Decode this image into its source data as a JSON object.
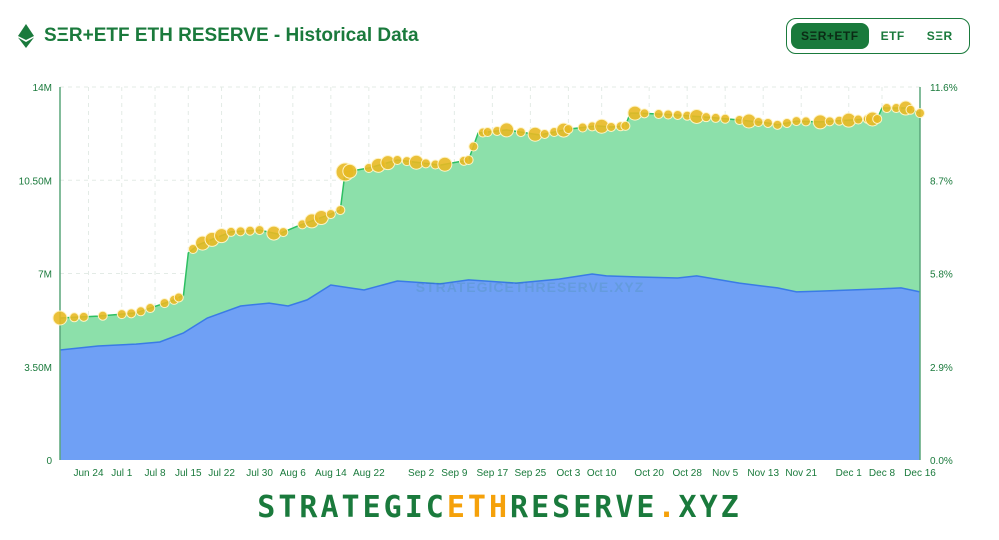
{
  "header": {
    "title": "SΞR+ETF ETH RESERVE - Historical Data",
    "logo_icon": "ethereum-icon"
  },
  "toggle": {
    "options": [
      "SΞR+ETF",
      "ETF",
      "SΞR"
    ],
    "active": 0
  },
  "footer": {
    "part1": "STRATEGIC",
    "part2": "ETH",
    "part3": "RESERVE",
    "part4": ".",
    "part5": "XYZ"
  },
  "colors": {
    "brand": "#1a7a3c",
    "total_fill": "#8ce0aa",
    "total_line": "#2dbf62",
    "ser_fill": "#6fa0f5",
    "ser_line": "#3a7be6",
    "bubble": "#e8b923",
    "accent": "#f5a10a"
  },
  "chart_data": {
    "type": "area",
    "watermark": "STRATEGICETHRESERVE.XYZ",
    "x_range": [
      "2024-06-18",
      "2024-12-16"
    ],
    "x_ticks": [
      "Jun 24",
      "Jul 1",
      "Jul 8",
      "Jul 15",
      "Jul 22",
      "Jul 30",
      "Aug 6",
      "Aug 14",
      "Aug 22",
      "Sep 2",
      "Sep 9",
      "Sep 17",
      "Sep 25",
      "Oct 3",
      "Oct 10",
      "Oct 20",
      "Oct 28",
      "Nov 5",
      "Nov 13",
      "Nov 21",
      "Dec 1",
      "Dec 8",
      "Dec 16"
    ],
    "x_tick_dates": [
      "2024-06-24",
      "2024-07-01",
      "2024-07-08",
      "2024-07-15",
      "2024-07-22",
      "2024-07-30",
      "2024-08-06",
      "2024-08-14",
      "2024-08-22",
      "2024-09-02",
      "2024-09-09",
      "2024-09-17",
      "2024-09-25",
      "2024-10-03",
      "2024-10-10",
      "2024-10-20",
      "2024-10-28",
      "2024-11-05",
      "2024-11-13",
      "2024-11-21",
      "2024-12-01",
      "2024-12-08",
      "2024-12-16"
    ],
    "y_left": {
      "ticks": [
        "0",
        "3.50M",
        "7M",
        "10.50M",
        "14M"
      ],
      "ylim": [
        0,
        14000000
      ]
    },
    "y_right": {
      "ticks": [
        "0.0%",
        "2.9%",
        "5.8%",
        "8.7%",
        "11.6%"
      ],
      "ylim": [
        0,
        11.6
      ]
    },
    "grid": true,
    "series": [
      {
        "key": "total",
        "values": [
          [
            "2024-06-18",
            5.33
          ],
          [
            "2024-06-26",
            5.4
          ],
          [
            "2024-07-04",
            5.52
          ],
          [
            "2024-07-12",
            6.01
          ],
          [
            "2024-07-14",
            6.19
          ],
          [
            "2024-07-15",
            7.77
          ],
          [
            "2024-07-17",
            8.07
          ],
          [
            "2024-07-24",
            8.56
          ],
          [
            "2024-07-30",
            8.63
          ],
          [
            "2024-08-03",
            8.48
          ],
          [
            "2024-08-07",
            8.78
          ],
          [
            "2024-08-14",
            9.23
          ],
          [
            "2024-08-16",
            9.38
          ],
          [
            "2024-08-17",
            10.81
          ],
          [
            "2024-08-22",
            10.96
          ],
          [
            "2024-08-28",
            11.26
          ],
          [
            "2024-09-06",
            11.07
          ],
          [
            "2024-09-12",
            11.26
          ],
          [
            "2024-09-14",
            12.27
          ],
          [
            "2024-09-20",
            12.39
          ],
          [
            "2024-09-27",
            12.2
          ],
          [
            "2024-10-03",
            12.42
          ],
          [
            "2024-10-09",
            12.54
          ],
          [
            "2024-10-12",
            12.5
          ],
          [
            "2024-10-15",
            12.54
          ],
          [
            "2024-10-16",
            13.02
          ],
          [
            "2024-10-18",
            13.02
          ],
          [
            "2024-10-26",
            12.95
          ],
          [
            "2024-11-03",
            12.84
          ],
          [
            "2024-11-08",
            12.76
          ],
          [
            "2024-11-14",
            12.65
          ],
          [
            "2024-11-16",
            12.58
          ],
          [
            "2024-11-20",
            12.72
          ],
          [
            "2024-11-25",
            12.69
          ],
          [
            "2024-12-05",
            12.8
          ],
          [
            "2024-12-07",
            12.8
          ],
          [
            "2024-12-08",
            13.21
          ],
          [
            "2024-12-13",
            13.21
          ],
          [
            "2024-12-16",
            13.02
          ]
        ]
      },
      {
        "key": "ser",
        "values": [
          [
            "2024-06-18",
            4.13
          ],
          [
            "2024-06-26",
            4.28
          ],
          [
            "2024-07-04",
            4.35
          ],
          [
            "2024-07-09",
            4.43
          ],
          [
            "2024-07-14",
            4.77
          ],
          [
            "2024-07-19",
            5.33
          ],
          [
            "2024-07-26",
            5.78
          ],
          [
            "2024-08-01",
            5.89
          ],
          [
            "2024-08-05",
            5.78
          ],
          [
            "2024-08-09",
            6.01
          ],
          [
            "2024-08-14",
            6.57
          ],
          [
            "2024-08-18",
            6.46
          ],
          [
            "2024-08-21",
            6.38
          ],
          [
            "2024-08-28",
            6.72
          ],
          [
            "2024-09-06",
            6.61
          ],
          [
            "2024-09-12",
            6.76
          ],
          [
            "2024-09-22",
            6.64
          ],
          [
            "2024-10-01",
            6.79
          ],
          [
            "2024-10-08",
            6.98
          ],
          [
            "2024-10-11",
            6.91
          ],
          [
            "2024-10-18",
            6.87
          ],
          [
            "2024-10-26",
            6.83
          ],
          [
            "2024-10-30",
            6.91
          ],
          [
            "2024-11-08",
            6.64
          ],
          [
            "2024-11-16",
            6.46
          ],
          [
            "2024-11-20",
            6.31
          ],
          [
            "2024-11-25",
            6.34
          ],
          [
            "2024-12-07",
            6.42
          ],
          [
            "2024-12-12",
            6.46
          ],
          [
            "2024-12-16",
            6.31
          ]
        ]
      }
    ],
    "bubbles": [
      [
        "2024-06-18",
        3
      ],
      [
        "2024-06-21",
        2
      ],
      [
        "2024-06-23",
        2
      ],
      [
        "2024-06-27",
        2
      ],
      [
        "2024-07-01",
        2
      ],
      [
        "2024-07-03",
        2
      ],
      [
        "2024-07-05",
        2
      ],
      [
        "2024-07-07",
        2
      ],
      [
        "2024-07-10",
        2
      ],
      [
        "2024-07-12",
        2
      ],
      [
        "2024-07-13",
        2
      ],
      [
        "2024-07-16",
        2
      ],
      [
        "2024-07-18",
        3
      ],
      [
        "2024-07-20",
        3
      ],
      [
        "2024-07-22",
        3
      ],
      [
        "2024-07-24",
        2
      ],
      [
        "2024-07-26",
        2
      ],
      [
        "2024-07-28",
        2
      ],
      [
        "2024-07-30",
        2
      ],
      [
        "2024-08-02",
        3
      ],
      [
        "2024-08-04",
        2
      ],
      [
        "2024-08-08",
        2
      ],
      [
        "2024-08-10",
        3
      ],
      [
        "2024-08-12",
        3
      ],
      [
        "2024-08-14",
        2
      ],
      [
        "2024-08-16",
        2
      ],
      [
        "2024-08-17",
        4
      ],
      [
        "2024-08-18",
        3
      ],
      [
        "2024-08-22",
        2
      ],
      [
        "2024-08-24",
        3
      ],
      [
        "2024-08-26",
        3
      ],
      [
        "2024-08-28",
        2
      ],
      [
        "2024-08-30",
        2
      ],
      [
        "2024-09-01",
        3
      ],
      [
        "2024-09-03",
        2
      ],
      [
        "2024-09-05",
        2
      ],
      [
        "2024-09-07",
        3
      ],
      [
        "2024-09-11",
        2
      ],
      [
        "2024-09-12",
        2
      ],
      [
        "2024-09-13",
        2
      ],
      [
        "2024-09-15",
        2
      ],
      [
        "2024-09-16",
        2
      ],
      [
        "2024-09-18",
        2
      ],
      [
        "2024-09-20",
        3
      ],
      [
        "2024-09-23",
        2
      ],
      [
        "2024-09-26",
        3
      ],
      [
        "2024-09-28",
        2
      ],
      [
        "2024-09-30",
        2
      ],
      [
        "2024-10-02",
        3
      ],
      [
        "2024-10-03",
        2
      ],
      [
        "2024-10-06",
        2
      ],
      [
        "2024-10-08",
        2
      ],
      [
        "2024-10-10",
        3
      ],
      [
        "2024-10-12",
        2
      ],
      [
        "2024-10-14",
        2
      ],
      [
        "2024-10-15",
        2
      ],
      [
        "2024-10-17",
        3
      ],
      [
        "2024-10-19",
        2
      ],
      [
        "2024-10-22",
        2
      ],
      [
        "2024-10-24",
        2
      ],
      [
        "2024-10-26",
        2
      ],
      [
        "2024-10-28",
        2
      ],
      [
        "2024-10-30",
        3
      ],
      [
        "2024-11-01",
        2
      ],
      [
        "2024-11-03",
        2
      ],
      [
        "2024-11-05",
        2
      ],
      [
        "2024-11-08",
        2
      ],
      [
        "2024-11-10",
        3
      ],
      [
        "2024-11-12",
        2
      ],
      [
        "2024-11-14",
        2
      ],
      [
        "2024-11-16",
        2
      ],
      [
        "2024-11-18",
        2
      ],
      [
        "2024-11-20",
        2
      ],
      [
        "2024-11-22",
        2
      ],
      [
        "2024-11-25",
        3
      ],
      [
        "2024-11-27",
        2
      ],
      [
        "2024-11-29",
        2
      ],
      [
        "2024-12-01",
        3
      ],
      [
        "2024-12-03",
        2
      ],
      [
        "2024-12-05",
        2
      ],
      [
        "2024-12-06",
        3
      ],
      [
        "2024-12-07",
        2
      ],
      [
        "2024-12-09",
        2
      ],
      [
        "2024-12-11",
        2
      ],
      [
        "2024-12-13",
        3
      ],
      [
        "2024-12-14",
        2
      ],
      [
        "2024-12-16",
        2
      ]
    ]
  }
}
